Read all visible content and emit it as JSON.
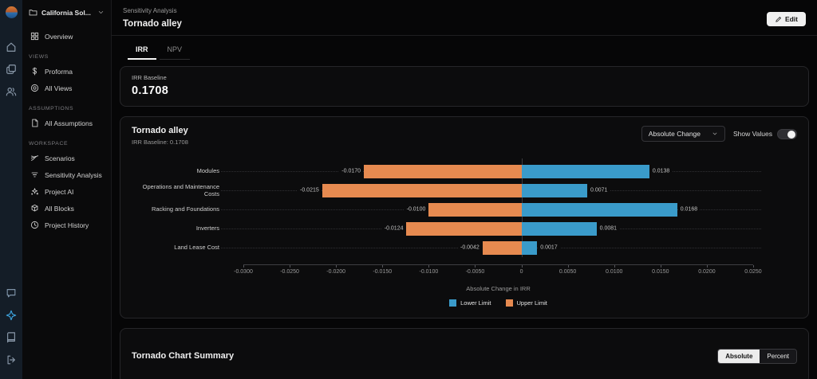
{
  "rail": {
    "top_icons": [
      "app-logo",
      "home-icon",
      "projects-icon",
      "users-icon"
    ],
    "bottom_icons": [
      "chat-icon",
      "assistant-icon",
      "docs-icon",
      "logout-icon"
    ]
  },
  "sidebar": {
    "project": {
      "label": "California Sol...",
      "icon": "folder"
    },
    "overview": {
      "label": "Overview",
      "icon": "grid"
    },
    "sections": [
      {
        "header": "VIEWS",
        "items": [
          {
            "label": "Proforma",
            "icon": "dollar"
          },
          {
            "label": "All Views",
            "icon": "views"
          }
        ]
      },
      {
        "header": "ASSUMPTIONS",
        "items": [
          {
            "label": "All Assumptions",
            "icon": "doc"
          }
        ]
      },
      {
        "header": "WORKSPACE",
        "items": [
          {
            "label": "Scenarios",
            "icon": "scenarios"
          },
          {
            "label": "Sensitivity Analysis",
            "icon": "filter"
          },
          {
            "label": "Project AI",
            "icon": "ai"
          },
          {
            "label": "All Blocks",
            "icon": "blocks"
          },
          {
            "label": "Project History",
            "icon": "clock"
          }
        ]
      }
    ]
  },
  "header": {
    "breadcrumb": "Sensitivity Analysis",
    "title": "Tornado alley",
    "edit_label": "Edit"
  },
  "tabs": [
    {
      "label": "IRR",
      "active": true
    },
    {
      "label": "NPV",
      "active": false
    }
  ],
  "baseline_card": {
    "label": "IRR Baseline",
    "value": "0.1708"
  },
  "chart_card": {
    "title": "Tornado alley",
    "subtitle": "IRR Baseline: 0.1708",
    "dropdown_value": "Absolute Change",
    "show_values_label": "Show Values",
    "show_values_on": true
  },
  "chart_data": {
    "type": "bar",
    "orientation": "horizontal-tornado",
    "title": "Tornado alley",
    "xlabel": "Absolute Change in IRR",
    "xlim": [
      -0.03,
      0.025
    ],
    "ticks": [
      -0.03,
      -0.025,
      -0.02,
      -0.015,
      -0.01,
      -0.005,
      0,
      0.005,
      0.01,
      0.015,
      0.02,
      0.025
    ],
    "tick_labels": [
      "-0.0300",
      "-0.0250",
      "-0.0200",
      "-0.0150",
      "-0.0100",
      "-0.0050",
      "0",
      "0.0050",
      "0.0100",
      "0.0150",
      "0.0200",
      "0.0250"
    ],
    "categories": [
      "Modules",
      "Operations and Maintenance Costs",
      "Racking and Foundations",
      "Inverters",
      "Land Lease Cost"
    ],
    "series": [
      {
        "name": "Lower Limit",
        "color": "#3a9bca",
        "values": [
          0.0138,
          0.0071,
          0.0168,
          0.0081,
          0.0017
        ],
        "value_labels": [
          "0.0138",
          "0.0071",
          "0.0168",
          "0.0081",
          "0.0017"
        ]
      },
      {
        "name": "Upper Limit",
        "color": "#e68a50",
        "values": [
          -0.017,
          -0.0215,
          -0.01,
          -0.0124,
          -0.0042
        ],
        "value_labels": [
          "-0.0170",
          "-0.0215",
          "-0.0100",
          "-0.0124",
          "-0.0042"
        ]
      }
    ],
    "legend_position": "bottom",
    "grid": "dotted-row-leaders"
  },
  "summary_card": {
    "title": "Tornado Chart Summary",
    "toggle_options": [
      "Absolute",
      "Percent"
    ],
    "selected": "Absolute"
  },
  "colors": {
    "lower_limit": "#3a9bca",
    "upper_limit": "#e68a50",
    "card_bg": "#0c0c0d"
  }
}
